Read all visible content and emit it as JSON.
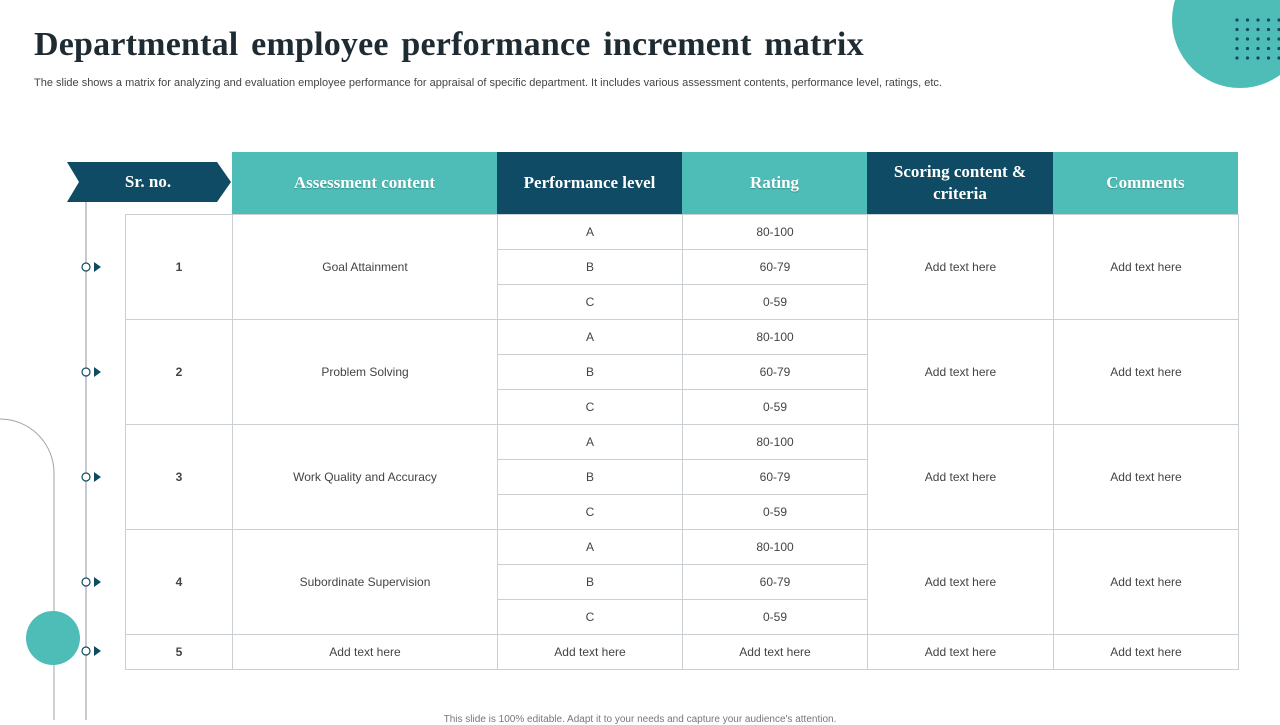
{
  "slide": {
    "title": "Departmental employee performance increment matrix",
    "subtitle": "The slide shows a matrix for analyzing and evaluation employee performance for appraisal of specific department. It includes various assessment contents, performance level, ratings, etc.",
    "footer": "This slide is 100% editable. Adapt it to your needs and capture your audience's attention."
  },
  "colors": {
    "teal": "#4fbdb7",
    "navy": "#0f4b64",
    "border": "#c9cfd3"
  },
  "table": {
    "headers": {
      "sr_no": "Sr. no.",
      "assessment": "Assessment content",
      "performance": "Performance level",
      "rating": "Rating",
      "scoring": "Scoring content & criteria",
      "comments": "Comments"
    },
    "groups": [
      {
        "sr": "1",
        "assessment": "Goal Attainment",
        "levels": [
          {
            "level": "A",
            "rating": "80-100"
          },
          {
            "level": "B",
            "rating": "60-79"
          },
          {
            "level": "C",
            "rating": "0-59"
          }
        ],
        "scoring": "Add text here",
        "comments": "Add text here"
      },
      {
        "sr": "2",
        "assessment": "Problem Solving",
        "levels": [
          {
            "level": "A",
            "rating": "80-100"
          },
          {
            "level": "B",
            "rating": "60-79"
          },
          {
            "level": "C",
            "rating": "0-59"
          }
        ],
        "scoring": "Add text here",
        "comments": "Add text here"
      },
      {
        "sr": "3",
        "assessment": "Work Quality and Accuracy",
        "levels": [
          {
            "level": "A",
            "rating": "80-100"
          },
          {
            "level": "B",
            "rating": "60-79"
          },
          {
            "level": "C",
            "rating": "0-59"
          }
        ],
        "scoring": "Add text here",
        "comments": "Add text here"
      },
      {
        "sr": "4",
        "assessment": "Subordinate Supervision",
        "levels": [
          {
            "level": "A",
            "rating": "80-100"
          },
          {
            "level": "B",
            "rating": "60-79"
          },
          {
            "level": "C",
            "rating": "0-59"
          }
        ],
        "scoring": "Add text here",
        "comments": "Add text here"
      }
    ],
    "last_row": {
      "sr": "5",
      "assessment": "Add text here",
      "performance": "Add text here",
      "rating": "Add text here",
      "scoring": "Add text here",
      "comments": "Add text here"
    }
  },
  "icons": {
    "timeline_node": "circle-arrow-node-icon",
    "dot_grid": "dot-grid-icon",
    "header_arrow": "arrow-banner-shape"
  }
}
